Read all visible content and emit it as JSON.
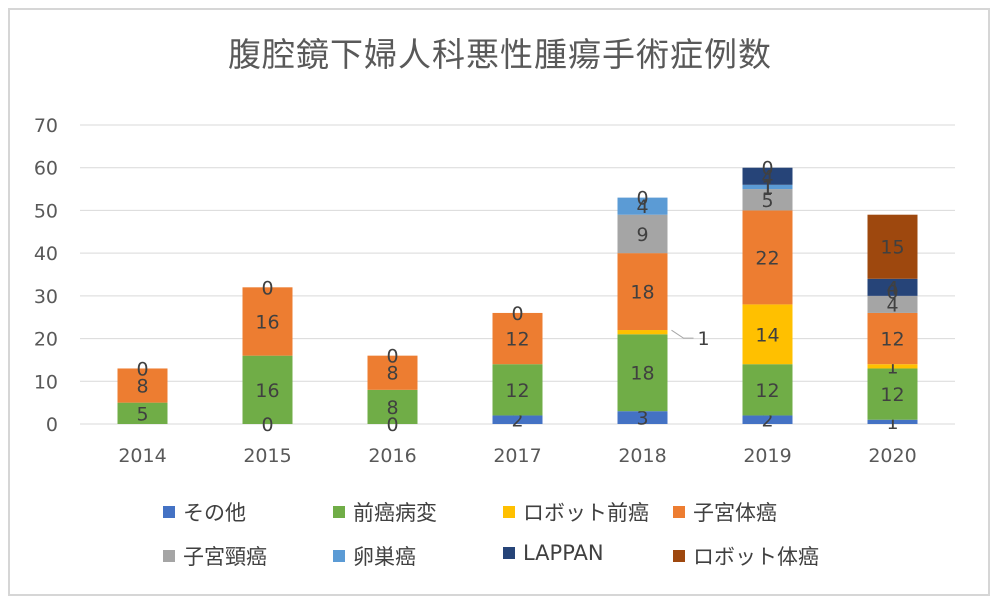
{
  "chart_data": {
    "type": "bar",
    "stacked": true,
    "title": "腹腔鏡下婦人科悪性腫瘍手術症例数",
    "xlabel": "",
    "ylabel": "",
    "ylim": [
      0,
      70
    ],
    "yticks": [
      0,
      10,
      20,
      30,
      40,
      50,
      60,
      70
    ],
    "grid": true,
    "legend_position": "bottom",
    "categories": [
      "2014",
      "2015",
      "2016",
      "2017",
      "2018",
      "2019",
      "2020"
    ],
    "series": [
      {
        "name": "その他",
        "color": "#4472c4",
        "values": [
          0,
          0,
          0,
          2,
          3,
          2,
          1
        ],
        "labels": [
          "",
          "",
          "",
          "2",
          "3",
          "2",
          "1"
        ]
      },
      {
        "name": "前癌病変",
        "color": "#70ad47",
        "values": [
          5,
          16,
          8,
          12,
          18,
          12,
          12
        ],
        "labels": [
          "5",
          "16",
          "8",
          "12",
          "18",
          "12",
          "12"
        ]
      },
      {
        "name": "ロボット前癌",
        "color": "#ffc000",
        "values": [
          0,
          0,
          0,
          0,
          1,
          14,
          1
        ],
        "labels": [
          "",
          "",
          "",
          "",
          "",
          "14",
          "1"
        ]
      },
      {
        "name": "子宮体癌",
        "color": "#ed7d31",
        "values": [
          8,
          16,
          8,
          12,
          18,
          22,
          12
        ],
        "labels": [
          "8",
          "16",
          "8",
          "12",
          "18",
          "22",
          "12"
        ]
      },
      {
        "name": "子宮頸癌",
        "color": "#a5a5a5",
        "values": [
          0,
          0,
          0,
          0,
          9,
          5,
          4
        ],
        "labels": [
          "",
          "",
          "",
          "",
          "9",
          "5",
          "4"
        ]
      },
      {
        "name": "卵巣癌",
        "color": "#5b9bd5",
        "values": [
          0,
          0,
          0,
          0,
          4,
          1,
          0
        ],
        "labels": [
          "",
          "",
          "",
          "",
          "4",
          "1",
          ""
        ]
      },
      {
        "name": "LAPPAN",
        "color": "#264478",
        "values": [
          0,
          0,
          0,
          0,
          0,
          4,
          4
        ],
        "labels": [
          "",
          "",
          "",
          "",
          "",
          "",
          "4"
        ]
      },
      {
        "name": "ロボット体癌",
        "color": "#9e480e",
        "values": [
          0,
          0,
          0,
          0,
          0,
          0,
          15
        ],
        "labels": [
          "",
          "",
          "",
          "",
          "",
          "",
          "15"
        ]
      }
    ],
    "extra_labels": [
      {
        "category": "2014",
        "text": "0",
        "at_value": 13
      },
      {
        "category": "2015",
        "text": "0",
        "at_value": 0
      },
      {
        "category": "2015",
        "text": "0",
        "at_value": 32
      },
      {
        "category": "2016",
        "text": "0",
        "at_value": 0
      },
      {
        "category": "2016",
        "text": "0",
        "at_value": 16
      },
      {
        "category": "2017",
        "text": "0",
        "at_value": 26
      },
      {
        "category": "2018",
        "text": "0",
        "at_value": 53
      },
      {
        "category": "2019",
        "text": "0",
        "at_value": 60
      },
      {
        "category": "2019",
        "text": "4",
        "at_value": 58
      },
      {
        "category": "2019",
        "text": "1",
        "at_value": 55.5
      },
      {
        "category": "2020",
        "text": "0",
        "at_value": 31
      }
    ],
    "callouts": [
      {
        "category": "2018",
        "text": "1",
        "at_value": 21.5
      }
    ]
  }
}
